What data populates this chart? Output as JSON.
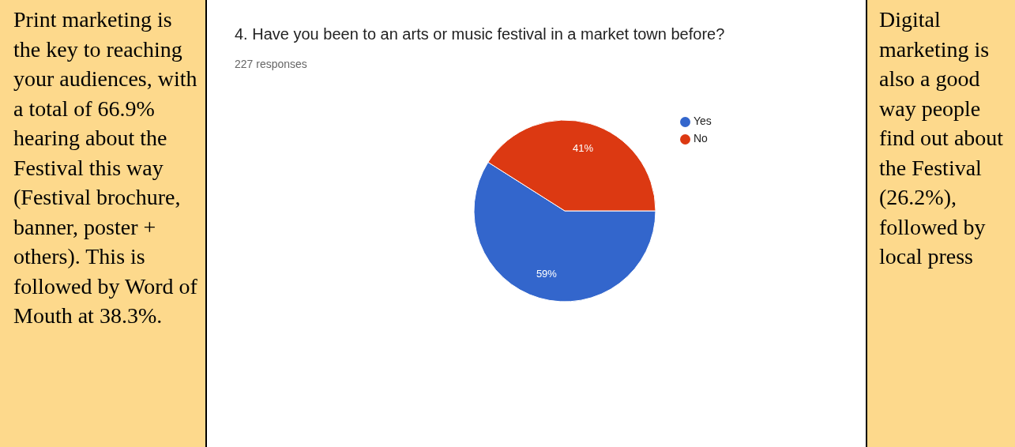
{
  "chart_data": {
    "type": "pie",
    "title": "4. Have you been to an arts or music festival in a market town before?",
    "subtitle": "227 responses",
    "categories": [
      "Yes",
      "No"
    ],
    "values": [
      59,
      41
    ],
    "colors": [
      "#3366cc",
      "#dc3912"
    ],
    "value_labels": [
      "59%",
      "41%"
    ],
    "legend": "top right",
    "annotations": [
      "Print marketing is the key to reaching your audiences, with a total of 66.9% hearing about the Festival this way (Festival brochure, banner, poster + others). This is followed by Word of Mouth at 38.3%.",
      "Digital marketing is also a good way people find out about the Festival (26.2%), followed by local press"
    ]
  }
}
